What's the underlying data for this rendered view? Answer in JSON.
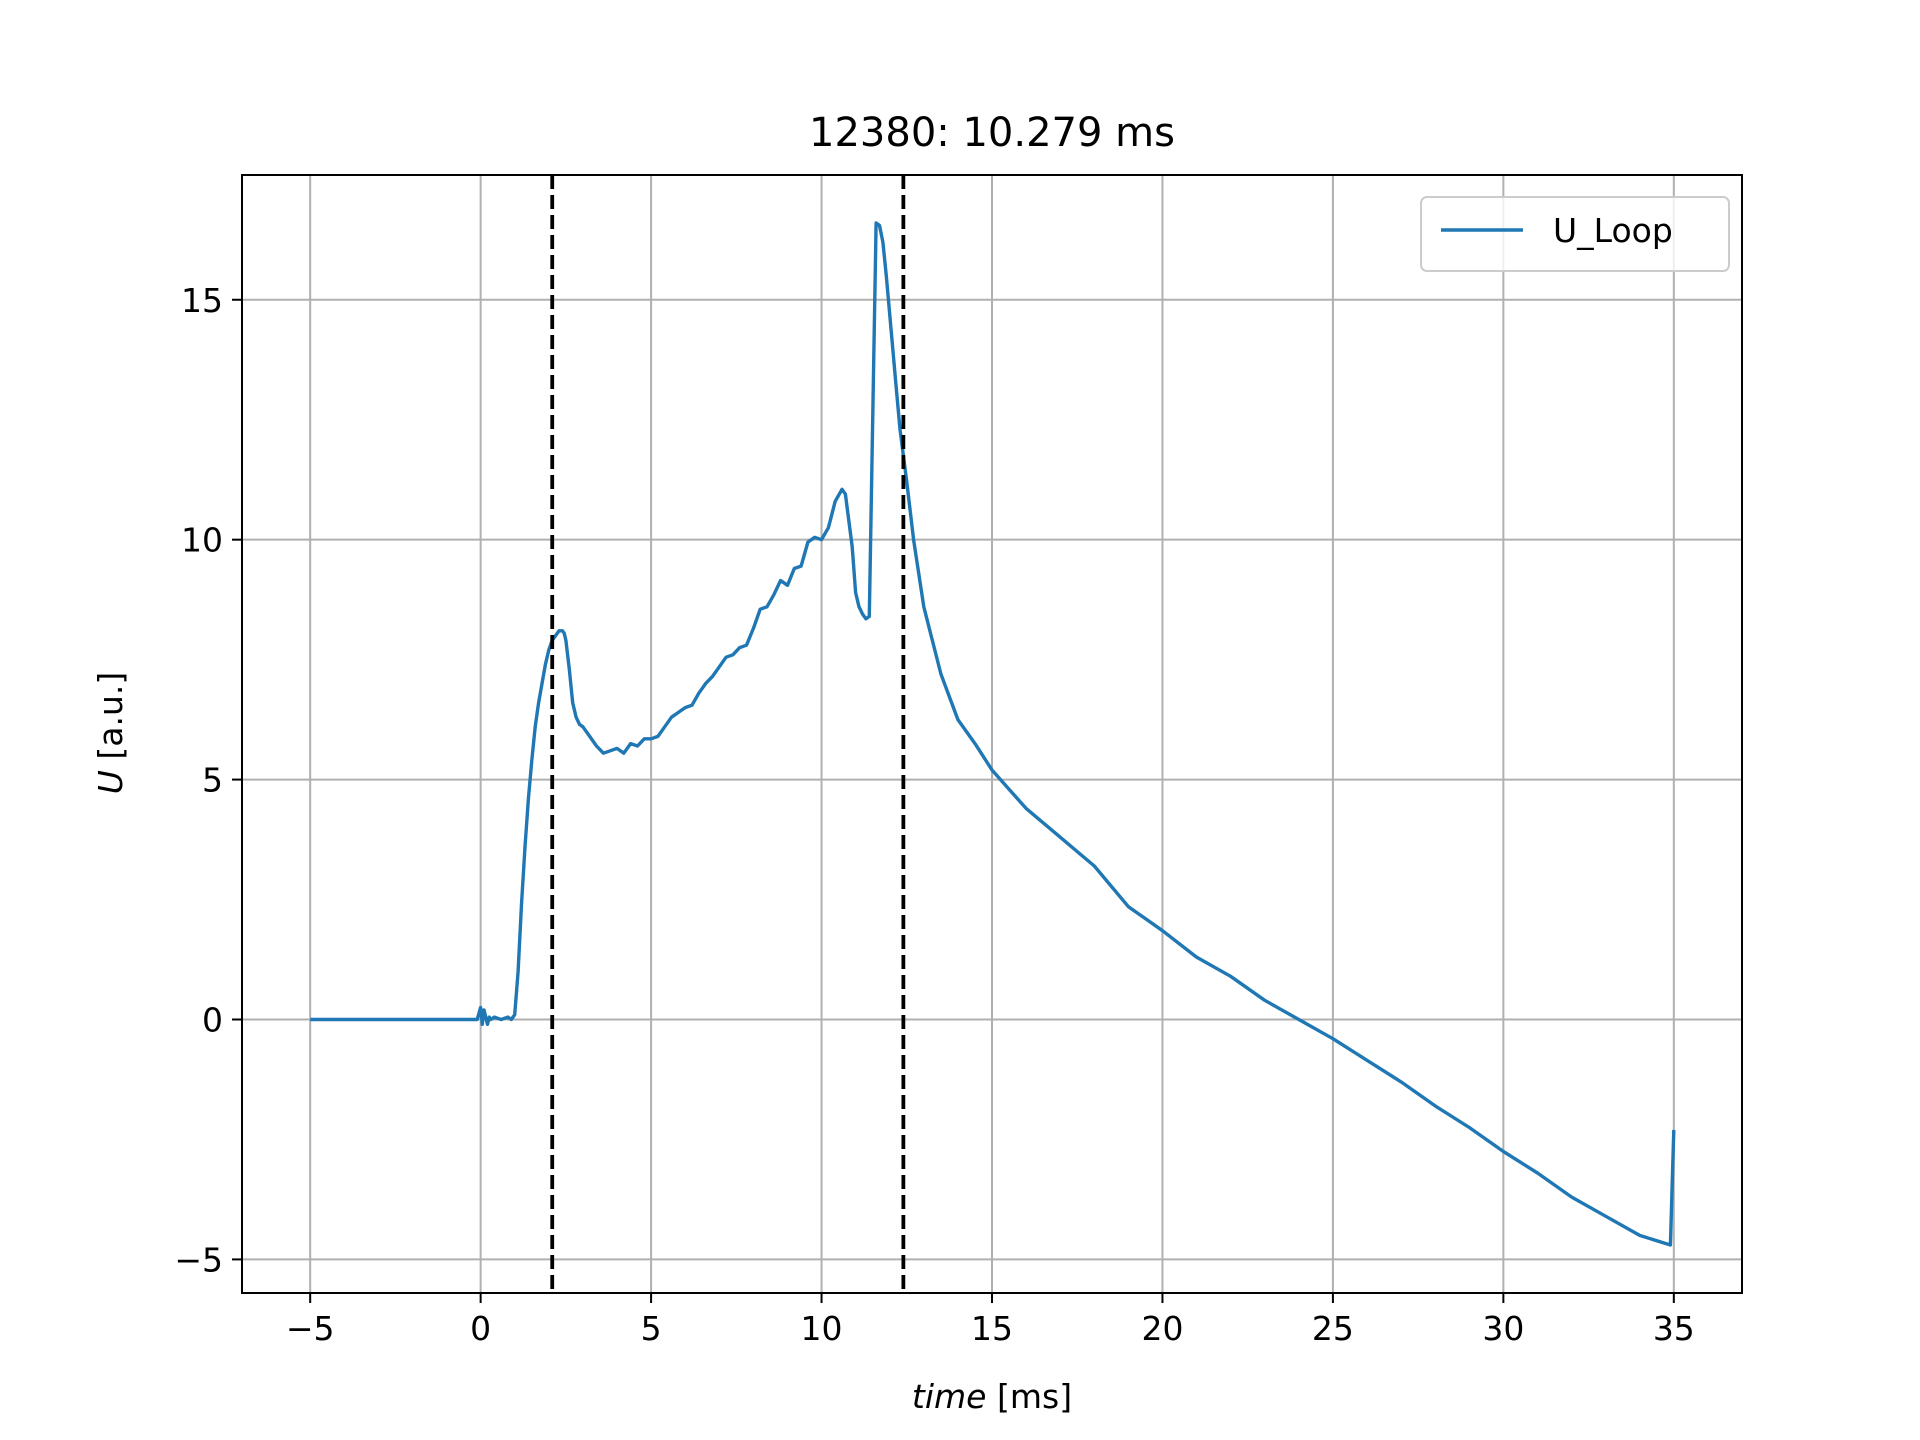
{
  "chart_data": {
    "type": "line",
    "title": "12380: 10.279 ms",
    "xlabel": {
      "italic": "time",
      "rest": " [ms]"
    },
    "ylabel": {
      "italic": "U",
      "rest": " [a.u.]"
    },
    "xlim": [
      -7,
      37
    ],
    "ylim": [
      -5.7,
      17.6
    ],
    "xticks": [
      -5,
      0,
      5,
      10,
      15,
      20,
      25,
      30,
      35
    ],
    "yticks": [
      -5,
      0,
      5,
      10,
      15
    ],
    "xtick_labels": [
      "−5",
      "0",
      "5",
      "10",
      "15",
      "20",
      "25",
      "30",
      "35"
    ],
    "ytick_labels": [
      "−5",
      "0",
      "5",
      "10",
      "15"
    ],
    "grid": true,
    "legend_position": "top-right",
    "vlines": [
      2.1,
      12.4
    ],
    "vline_color": "#000000",
    "series": [
      {
        "name": "U_Loop",
        "color": "#1f77b4",
        "x": [
          -5,
          -1,
          -0.1,
          0.0,
          0.05,
          0.1,
          0.2,
          0.25,
          0.3,
          0.4,
          0.6,
          0.8,
          0.9,
          1.0,
          1.1,
          1.2,
          1.3,
          1.4,
          1.5,
          1.6,
          1.7,
          1.8,
          1.9,
          2.0,
          2.1,
          2.2,
          2.3,
          2.4,
          2.45,
          2.5,
          2.6,
          2.7,
          2.8,
          2.9,
          3.0,
          3.2,
          3.4,
          3.6,
          3.8,
          4.0,
          4.2,
          4.4,
          4.6,
          4.8,
          5.0,
          5.2,
          5.4,
          5.6,
          5.8,
          6.0,
          6.2,
          6.4,
          6.6,
          6.8,
          7.0,
          7.2,
          7.4,
          7.6,
          7.8,
          8.0,
          8.2,
          8.4,
          8.6,
          8.8,
          9.0,
          9.2,
          9.4,
          9.6,
          9.8,
          10.0,
          10.2,
          10.4,
          10.6,
          10.7,
          10.8,
          10.9,
          11.0,
          11.1,
          11.2,
          11.3,
          11.4,
          11.5,
          11.6,
          11.7,
          11.8,
          11.9,
          12.0,
          12.1,
          12.2,
          12.3,
          12.5,
          12.7,
          13.0,
          13.5,
          14.0,
          14.5,
          15.0,
          15.5,
          16.0,
          17.0,
          18.0,
          19.0,
          20.0,
          21.0,
          22.0,
          23.0,
          24.0,
          25.0,
          26.0,
          27.0,
          28.0,
          29.0,
          30.0,
          31.0,
          32.0,
          33.0,
          34.0,
          34.9,
          35.0
        ],
        "y": [
          0,
          0,
          0,
          0.25,
          -0.1,
          0.2,
          -0.1,
          0.05,
          0.0,
          0.05,
          0.0,
          0.05,
          0.0,
          0.1,
          1.0,
          2.4,
          3.6,
          4.6,
          5.4,
          6.1,
          6.6,
          7.0,
          7.4,
          7.7,
          7.9,
          8.0,
          8.1,
          8.1,
          8.05,
          7.9,
          7.3,
          6.6,
          6.3,
          6.15,
          6.1,
          5.9,
          5.7,
          5.55,
          5.6,
          5.65,
          5.55,
          5.75,
          5.7,
          5.85,
          5.85,
          5.9,
          6.1,
          6.3,
          6.4,
          6.5,
          6.55,
          6.8,
          7.0,
          7.15,
          7.35,
          7.55,
          7.6,
          7.75,
          7.8,
          8.15,
          8.55,
          8.6,
          8.85,
          9.15,
          9.05,
          9.4,
          9.45,
          9.95,
          10.05,
          10.0,
          10.25,
          10.8,
          11.05,
          10.95,
          10.4,
          9.85,
          8.9,
          8.6,
          8.45,
          8.35,
          8.4,
          12.5,
          16.6,
          16.55,
          16.2,
          15.5,
          14.7,
          13.9,
          13.1,
          12.3,
          11.2,
          10.0,
          8.6,
          7.2,
          6.25,
          5.75,
          5.2,
          4.8,
          4.4,
          3.8,
          3.2,
          2.35,
          1.85,
          1.3,
          0.9,
          0.4,
          0.0,
          -0.4,
          -0.85,
          -1.3,
          -1.8,
          -2.25,
          -2.75,
          -3.2,
          -3.7,
          -4.1,
          -4.5,
          -4.7,
          -2.3
        ]
      }
    ]
  }
}
